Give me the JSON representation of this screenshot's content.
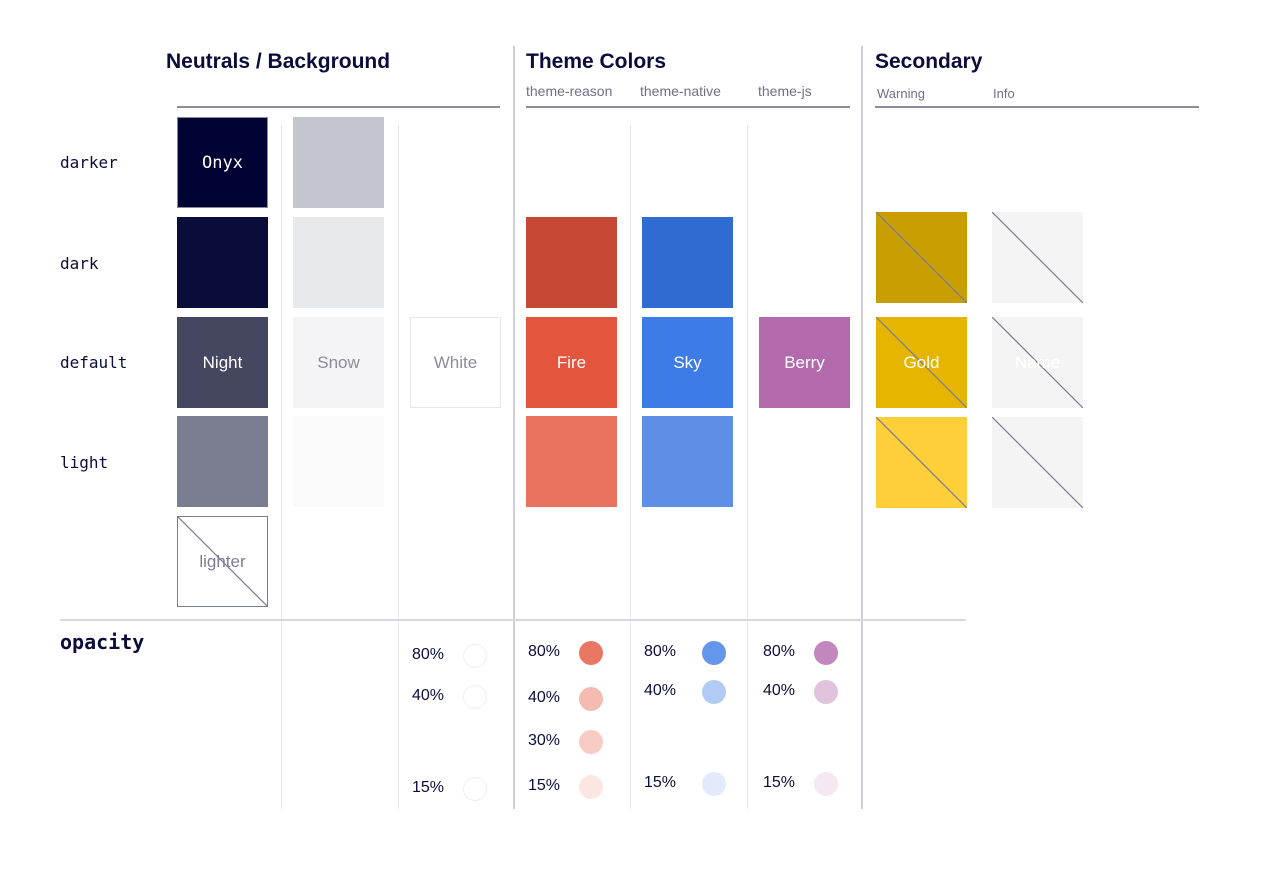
{
  "headers": {
    "neutrals": "Neutrals / Background",
    "theme": "Theme Colors",
    "theme_sub": [
      "theme-reason",
      "theme-native",
      "theme-js"
    ],
    "secondary": "Secondary",
    "secondary_sub": [
      "Warning",
      "Info"
    ]
  },
  "rows": [
    "darker",
    "dark",
    "default",
    "light"
  ],
  "opacity_label": "opacity",
  "swatches": [
    {
      "col": 0,
      "row": "darker",
      "color": "#000333",
      "label": "Onyx",
      "text": "#ffffff",
      "mono": true,
      "border": "#8a8c99"
    },
    {
      "col": 0,
      "row": "dark",
      "color": "#0a0c3a"
    },
    {
      "col": 0,
      "row": "default",
      "color": "#454660",
      "label": "Night",
      "text": "#ffffff"
    },
    {
      "col": 0,
      "row": "light",
      "color": "#7b7d91"
    },
    {
      "col": 0,
      "row": "lighter",
      "color": "#ffffff",
      "label": "lighter",
      "text": "#7b7d91",
      "border": "#7b7d91",
      "diagonal": true
    },
    {
      "col": 1,
      "row": "darker",
      "color": "#c4c6cf"
    },
    {
      "col": 1,
      "row": "dark",
      "color": "#e8e9ec"
    },
    {
      "col": 1,
      "row": "default",
      "color": "#f4f4f6",
      "label": "Snow",
      "text": "#8a8c99"
    },
    {
      "col": 1,
      "row": "light",
      "color": "#fafafb"
    },
    {
      "col": 2,
      "row": "default",
      "color": "#ffffff",
      "label": "White",
      "text": "#8a8c99",
      "border": "#e6e7ec"
    },
    {
      "col": 3,
      "row": "dark",
      "color": "#c54934"
    },
    {
      "col": 3,
      "row": "default",
      "color": "#e4553d",
      "label": "Fire",
      "text": "#ffffff"
    },
    {
      "col": 3,
      "row": "light",
      "color": "#e8735f"
    },
    {
      "col": 4,
      "row": "dark",
      "color": "#2f6bd1"
    },
    {
      "col": 4,
      "row": "default",
      "color": "#3d7ce6",
      "label": "Sky",
      "text": "#ffffff"
    },
    {
      "col": 4,
      "row": "light",
      "color": "#5e8fe6"
    },
    {
      "col": 5,
      "row": "default",
      "color": "#b36aad",
      "label": "Berry",
      "text": "#ffffff"
    },
    {
      "col": 6,
      "row": "dark",
      "color": "#c99e00",
      "diagonal": true
    },
    {
      "col": 6,
      "row": "default",
      "color": "#e5b500",
      "label": "Gold",
      "text": "#ffffff",
      "diagonal": true
    },
    {
      "col": 6,
      "row": "light",
      "color": "#ffcf3a",
      "diagonal": true
    },
    {
      "col": 7,
      "row": "dark",
      "color": "#f4f4f5",
      "diagonal": true
    },
    {
      "col": 7,
      "row": "default",
      "color": "#f4f4f5",
      "label": "Name",
      "text": "#ffffff",
      "diagonal": true
    },
    {
      "col": 7,
      "row": "light",
      "color": "#f4f4f5",
      "diagonal": true
    }
  ],
  "opacity": [
    {
      "col": 2,
      "color": "#ffffff",
      "steps": [
        {
          "label": "80%",
          "alpha": 0.8
        },
        {
          "label": "40%",
          "alpha": 0.4
        },
        {
          "label": "15%",
          "alpha": 0.15
        }
      ]
    },
    {
      "col": 3,
      "color": "#e4553d",
      "steps": [
        {
          "label": "80%",
          "alpha": 0.8
        },
        {
          "label": "40%",
          "alpha": 0.4
        },
        {
          "label": "30%",
          "alpha": 0.3
        },
        {
          "label": "15%",
          "alpha": 0.15
        }
      ]
    },
    {
      "col": 4,
      "color": "#3d7ce6",
      "steps": [
        {
          "label": "80%",
          "alpha": 0.8
        },
        {
          "label": "40%",
          "alpha": 0.4
        },
        {
          "label": "15%",
          "alpha": 0.15
        }
      ]
    },
    {
      "col": 5,
      "color": "#b36aad",
      "steps": [
        {
          "label": "80%",
          "alpha": 0.8
        },
        {
          "label": "40%",
          "alpha": 0.4
        },
        {
          "label": "15%",
          "alpha": 0.15
        }
      ]
    }
  ]
}
